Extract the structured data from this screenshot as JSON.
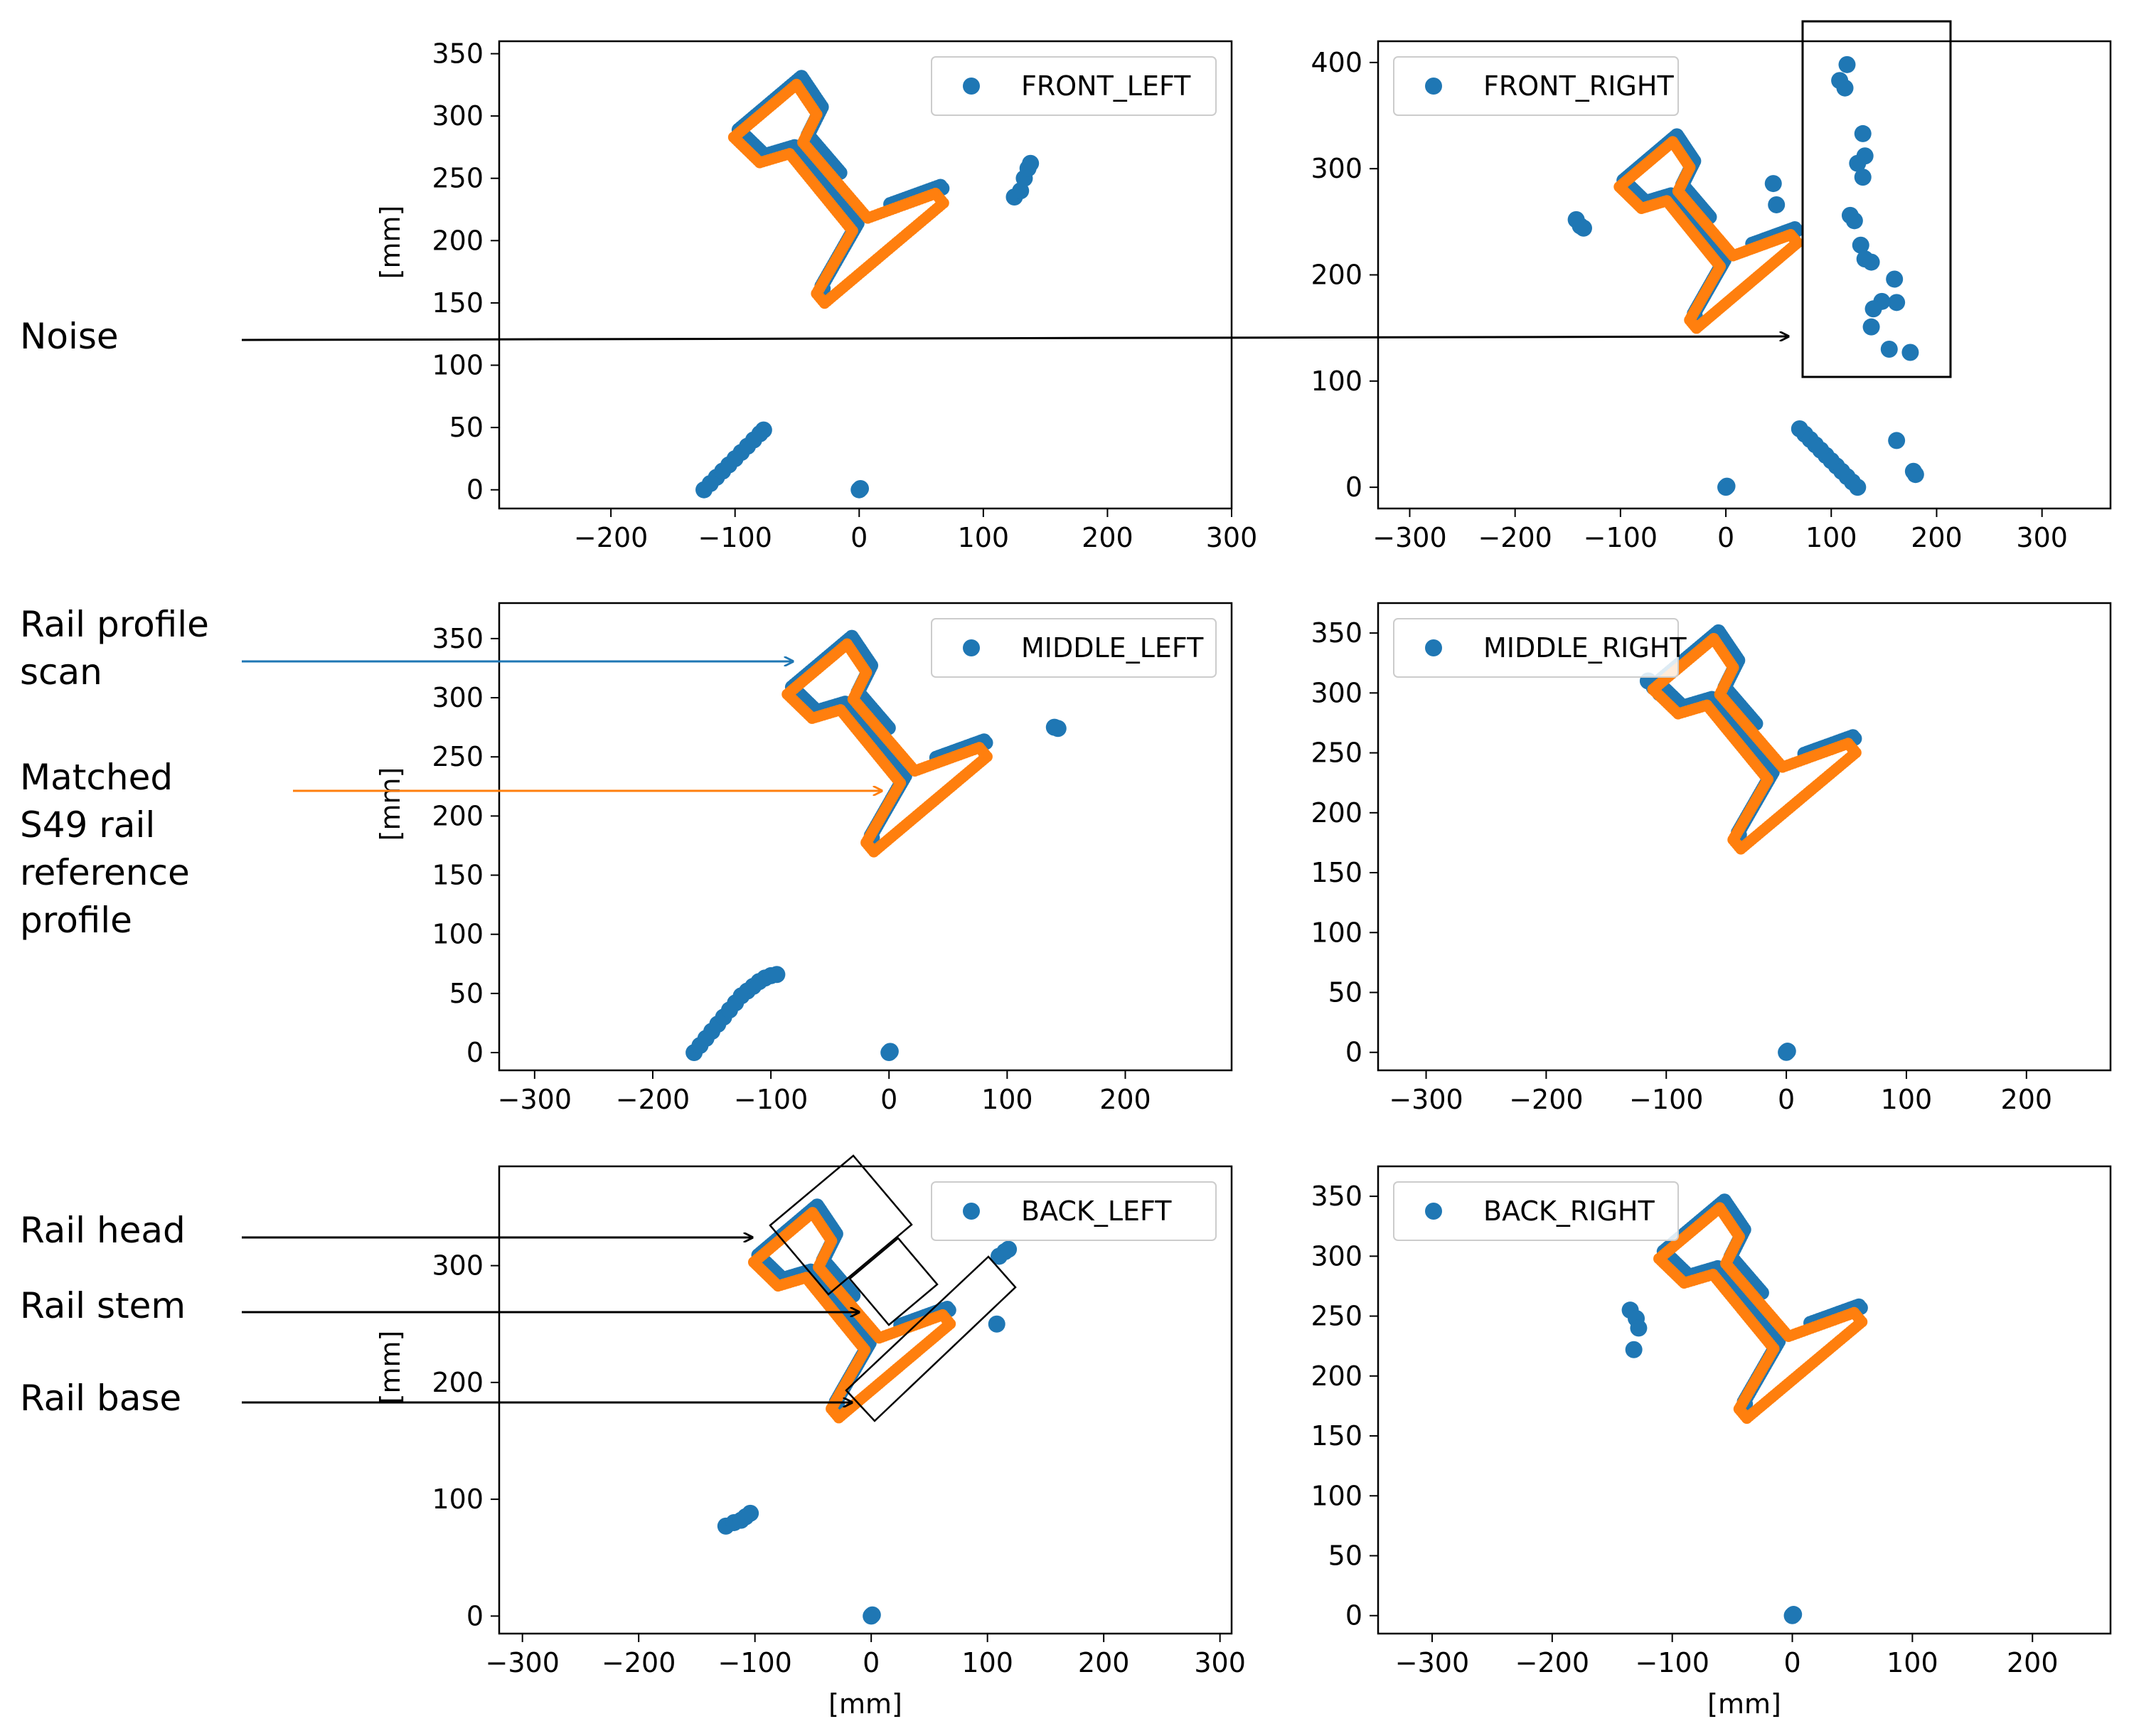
{
  "colors": {
    "scan": "#1f77b4",
    "reference": "#ff7f0e",
    "axes": "#000000",
    "legend_border": "#cccccc"
  },
  "annotations": {
    "noise": "Noise",
    "rail_profile_scan": [
      "Rail profile",
      "scan"
    ],
    "matched_reference": [
      "Matched",
      "S49 rail",
      "reference",
      "profile"
    ],
    "rail_head": "Rail head",
    "rail_stem": "Rail stem",
    "rail_base": "Rail base"
  },
  "chart_data": [
    {
      "type": "scatter",
      "legend": "FRONT_LEFT",
      "legend_position": "top-right",
      "xlim": [
        -290,
        300
      ],
      "ylim": [
        -15,
        360
      ],
      "xticks": [
        -200,
        -100,
        0,
        100,
        200,
        300
      ],
      "yticks": [
        0,
        50,
        100,
        150,
        200,
        250,
        300,
        350
      ],
      "xlabel": "",
      "ylabel": "[mm]",
      "ref_pose": {
        "x": 0,
        "y": 0,
        "angle": 40
      },
      "noise": [
        {
          "x": -125,
          "y": 0
        },
        {
          "x": -120,
          "y": 5
        },
        {
          "x": -115,
          "y": 10
        },
        {
          "x": -110,
          "y": 15
        },
        {
          "x": -105,
          "y": 20
        },
        {
          "x": -100,
          "y": 25
        },
        {
          "x": -95,
          "y": 30
        },
        {
          "x": -90,
          "y": 35
        },
        {
          "x": -85,
          "y": 40
        },
        {
          "x": -80,
          "y": 45
        },
        {
          "x": -77,
          "y": 48
        },
        {
          "x": 0,
          "y": 0
        },
        {
          "x": 1,
          "y": 1
        },
        {
          "x": 125,
          "y": 235
        },
        {
          "x": 130,
          "y": 240
        },
        {
          "x": 133,
          "y": 250
        },
        {
          "x": 136,
          "y": 258
        },
        {
          "x": 138,
          "y": 262
        }
      ]
    },
    {
      "type": "scatter",
      "legend": "FRONT_RIGHT",
      "legend_position": "top-left",
      "xlim": [
        -330,
        365
      ],
      "ylim": [
        -20,
        420
      ],
      "xticks": [
        -300,
        -200,
        -100,
        0,
        100,
        200,
        300
      ],
      "yticks": [
        0,
        100,
        200,
        300,
        400
      ],
      "xlabel": "",
      "ylabel": "",
      "ref_pose": {
        "x": 0,
        "y": 0,
        "angle": 40
      },
      "noise": [
        {
          "x": 115,
          "y": 398
        },
        {
          "x": 108,
          "y": 383
        },
        {
          "x": 113,
          "y": 376
        },
        {
          "x": 130,
          "y": 333
        },
        {
          "x": 132,
          "y": 312
        },
        {
          "x": 125,
          "y": 305
        },
        {
          "x": 130,
          "y": 292
        },
        {
          "x": 118,
          "y": 256
        },
        {
          "x": 122,
          "y": 251
        },
        {
          "x": 128,
          "y": 228
        },
        {
          "x": 132,
          "y": 215
        },
        {
          "x": 138,
          "y": 212
        },
        {
          "x": 160,
          "y": 196
        },
        {
          "x": 162,
          "y": 174
        },
        {
          "x": 148,
          "y": 175
        },
        {
          "x": 140,
          "y": 168
        },
        {
          "x": 138,
          "y": 151
        },
        {
          "x": 155,
          "y": 130
        },
        {
          "x": 175,
          "y": 127
        },
        {
          "x": 162,
          "y": 44
        },
        {
          "x": 180,
          "y": 12
        },
        {
          "x": 178,
          "y": 15
        },
        {
          "x": 45,
          "y": 286
        },
        {
          "x": 48,
          "y": 266
        },
        {
          "x": -142,
          "y": 252
        },
        {
          "x": -138,
          "y": 246
        },
        {
          "x": -135,
          "y": 244
        },
        {
          "x": 0,
          "y": 0
        },
        {
          "x": 1,
          "y": 1
        },
        {
          "x": 70,
          "y": 55
        },
        {
          "x": 75,
          "y": 50
        },
        {
          "x": 80,
          "y": 45
        },
        {
          "x": 85,
          "y": 40
        },
        {
          "x": 90,
          "y": 35
        },
        {
          "x": 95,
          "y": 30
        },
        {
          "x": 100,
          "y": 25
        },
        {
          "x": 105,
          "y": 20
        },
        {
          "x": 110,
          "y": 15
        },
        {
          "x": 115,
          "y": 10
        },
        {
          "x": 120,
          "y": 5
        },
        {
          "x": 125,
          "y": 0
        }
      ]
    },
    {
      "type": "scatter",
      "legend": "MIDDLE_LEFT",
      "legend_position": "top-right",
      "xlim": [
        -330,
        290
      ],
      "ylim": [
        -15,
        380
      ],
      "xticks": [
        -300,
        -200,
        -100,
        0,
        100,
        200
      ],
      "yticks": [
        0,
        50,
        100,
        150,
        200,
        250,
        300,
        350
      ],
      "xlabel": "",
      "ylabel": "[mm]",
      "ref_pose": {
        "x": 15,
        "y": 20,
        "angle": 40
      },
      "noise": [
        {
          "x": -165,
          "y": 0
        },
        {
          "x": -160,
          "y": 6
        },
        {
          "x": -155,
          "y": 12
        },
        {
          "x": -150,
          "y": 18
        },
        {
          "x": -145,
          "y": 24
        },
        {
          "x": -140,
          "y": 30
        },
        {
          "x": -135,
          "y": 36
        },
        {
          "x": -130,
          "y": 42
        },
        {
          "x": -125,
          "y": 48
        },
        {
          "x": -120,
          "y": 52
        },
        {
          "x": -115,
          "y": 56
        },
        {
          "x": -110,
          "y": 60
        },
        {
          "x": -105,
          "y": 63
        },
        {
          "x": -100,
          "y": 65
        },
        {
          "x": -95,
          "y": 66
        },
        {
          "x": 0,
          "y": 0
        },
        {
          "x": 1,
          "y": 1
        },
        {
          "x": 140,
          "y": 275
        },
        {
          "x": 143,
          "y": 274
        }
      ]
    },
    {
      "type": "scatter",
      "legend": "MIDDLE_RIGHT",
      "legend_position": "top-left",
      "xlim": [
        -340,
        270
      ],
      "ylim": [
        -15,
        375
      ],
      "xticks": [
        -300,
        -200,
        -100,
        0,
        100,
        200
      ],
      "yticks": [
        0,
        50,
        100,
        150,
        200,
        250,
        300,
        350
      ],
      "xlabel": "",
      "ylabel": "",
      "ref_pose": {
        "x": -10,
        "y": 20,
        "angle": 40
      },
      "noise": [
        {
          "x": -115,
          "y": 310
        },
        {
          "x": -110,
          "y": 305
        },
        {
          "x": -105,
          "y": 300
        },
        {
          "x": 0,
          "y": 0
        },
        {
          "x": 1,
          "y": 1
        }
      ]
    },
    {
      "type": "scatter",
      "legend": "BACK_LEFT",
      "legend_position": "top-right",
      "xlim": [
        -320,
        310
      ],
      "ylim": [
        -15,
        385
      ],
      "xticks": [
        -300,
        -200,
        -100,
        0,
        100,
        200,
        300
      ],
      "yticks": [
        0,
        100,
        200,
        300
      ],
      "xlabel": "[mm]",
      "ylabel": "[mm]",
      "ref_pose": {
        "x": 0,
        "y": 20,
        "angle": 40
      },
      "noise": [
        {
          "x": -125,
          "y": 77
        },
        {
          "x": -118,
          "y": 80
        },
        {
          "x": -112,
          "y": 82
        },
        {
          "x": -108,
          "y": 85
        },
        {
          "x": -104,
          "y": 88
        },
        {
          "x": 0,
          "y": 0
        },
        {
          "x": 1,
          "y": 1
        },
        {
          "x": 110,
          "y": 308
        },
        {
          "x": 115,
          "y": 312
        },
        {
          "x": 118,
          "y": 314
        },
        {
          "x": 108,
          "y": 250
        }
      ]
    },
    {
      "type": "scatter",
      "legend": "BACK_RIGHT",
      "legend_position": "top-left",
      "xlim": [
        -345,
        265
      ],
      "ylim": [
        -15,
        375
      ],
      "xticks": [
        -300,
        -200,
        -100,
        0,
        100,
        200
      ],
      "yticks": [
        0,
        50,
        100,
        150,
        200,
        250,
        300,
        350
      ],
      "xlabel": "[mm]",
      "ylabel": "",
      "ref_pose": {
        "x": -10,
        "y": 15,
        "angle": 40
      },
      "noise": [
        {
          "x": -135,
          "y": 255
        },
        {
          "x": -130,
          "y": 248
        },
        {
          "x": -128,
          "y": 240
        },
        {
          "x": -132,
          "y": 222
        },
        {
          "x": 0,
          "y": 0
        },
        {
          "x": 1,
          "y": 1
        }
      ]
    }
  ]
}
